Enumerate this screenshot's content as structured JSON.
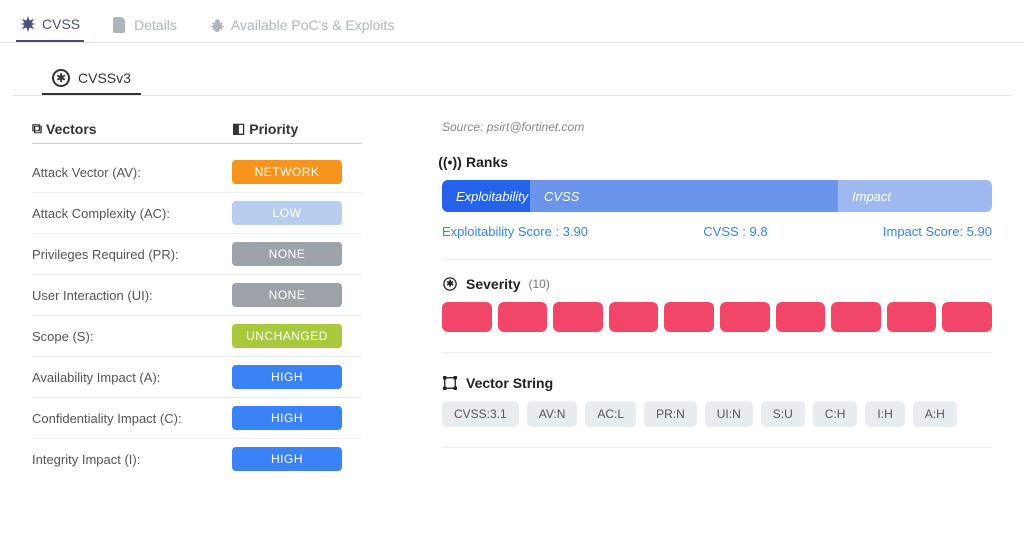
{
  "tabs": {
    "main": [
      {
        "label": "CVSS",
        "active": true
      },
      {
        "label": "Details",
        "active": false
      },
      {
        "label": "Available PoC's & Exploits",
        "active": false
      }
    ],
    "sub": {
      "label": "CVSSv3"
    }
  },
  "left": {
    "header_vectors": "Vectors",
    "header_priority": "Priority",
    "rows": [
      {
        "label": "Attack Vector (AV):",
        "value": "NETWORK",
        "color": "#f7941d"
      },
      {
        "label": "Attack Complexity (AC):",
        "value": "LOW",
        "color": "#b8cdf0"
      },
      {
        "label": "Privileges Required (PR):",
        "value": "NONE",
        "color": "#9da1a8"
      },
      {
        "label": "User Interaction (UI):",
        "value": "NONE",
        "color": "#9da1a8"
      },
      {
        "label": "Scope (S):",
        "value": "UNCHANGED",
        "color": "#a8c93b"
      },
      {
        "label": "Availability Impact (A):",
        "value": "HIGH",
        "color": "#3b82f6"
      },
      {
        "label": "Confidentiality Impact (C):",
        "value": "HIGH",
        "color": "#3b82f6"
      },
      {
        "label": "Integrity Impact (I):",
        "value": "HIGH",
        "color": "#3b82f6"
      }
    ]
  },
  "right": {
    "source": "Source: psirt@fortinet.com",
    "ranks": {
      "title": "Ranks",
      "segments": [
        {
          "label": "Exploitability",
          "color": "#2563eb",
          "width": 16
        },
        {
          "label": "CVSS",
          "color": "#6b95e8",
          "width": 56
        },
        {
          "label": "Impact",
          "color": "#9fb9f0",
          "width": 28
        }
      ],
      "scores": {
        "exploit": "Exploitability Score : 3.90",
        "cvss": "CVSS : 9.8",
        "impact": "Impact Score: 5.90"
      }
    },
    "severity": {
      "title": "Severity",
      "count": "(10)",
      "blocks": 10,
      "color": "#f14668"
    },
    "vector_string": {
      "title": "Vector String",
      "chips": [
        "CVSS:3.1",
        "AV:N",
        "AC:L",
        "PR:N",
        "UI:N",
        "S:U",
        "C:H",
        "I:H",
        "A:H"
      ]
    }
  }
}
